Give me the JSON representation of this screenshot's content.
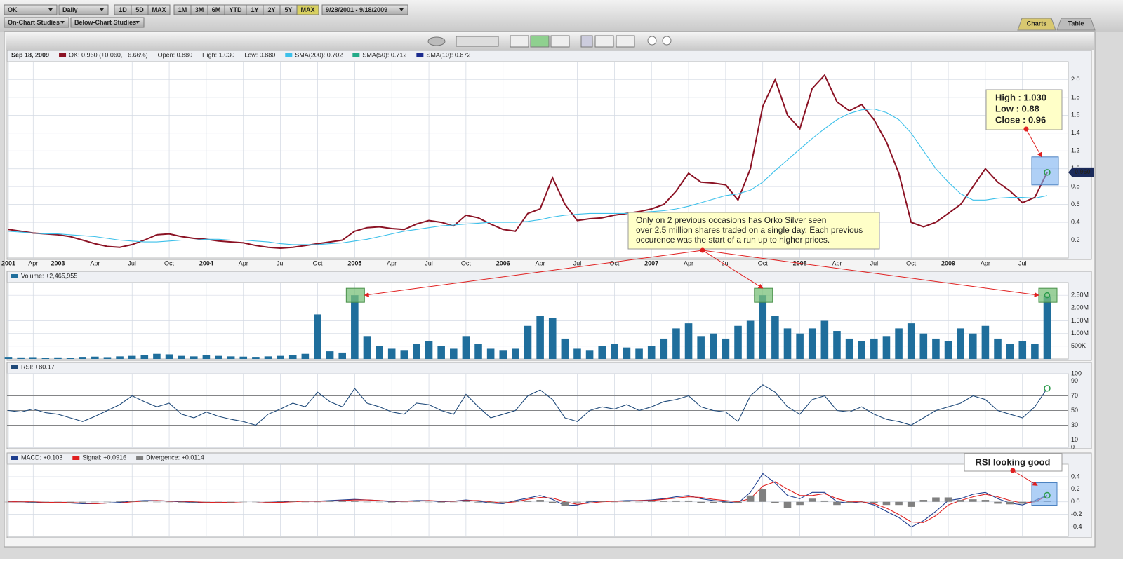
{
  "toolbar": {
    "symbol": "OK",
    "interval": "Daily",
    "ranges": [
      "1D",
      "5D",
      "MAX",
      "1M",
      "3M",
      "6M",
      "YTD",
      "1Y",
      "2Y",
      "5Y",
      "MAX"
    ],
    "selected_range": 10,
    "date_range": "9/28/2001 - 9/18/2009",
    "studies": [
      "On-Chart Studies",
      "Below-Chart Studies"
    ],
    "tabs": [
      "Charts",
      "Table"
    ]
  },
  "chart_data": [
    {
      "type": "line",
      "date_label": "Sep 18, 2009",
      "last_value_label": "0.960",
      "categories": [
        "2001",
        null,
        "Apr",
        null,
        "2003",
        null,
        null,
        "Apr",
        null,
        null,
        "Jul",
        null,
        null,
        "Oct",
        null,
        null,
        "2004",
        null,
        null,
        "Apr",
        null,
        null,
        "Jul",
        null,
        null,
        "Oct",
        null,
        null,
        "2005",
        null,
        null,
        "Apr",
        null,
        null,
        "Jul",
        null,
        null,
        "Oct",
        null,
        null,
        "2006",
        null,
        null,
        "Apr",
        null,
        null,
        "Jul",
        null,
        null,
        "Oct",
        null,
        null,
        "2007",
        null,
        null,
        "Apr",
        null,
        null,
        "Jul",
        null,
        null,
        "Oct",
        null,
        null,
        "2008",
        null,
        null,
        "Apr",
        null,
        null,
        "Jul",
        null,
        null,
        "Oct",
        null,
        null,
        "2009",
        null,
        null,
        "Apr",
        null,
        null,
        "Jul",
        null,
        null
      ],
      "series": [
        {
          "name": "OK: 0.960 (+0.060, +6.66%)",
          "color": "#8b1224",
          "values": [
            0.32,
            0.3,
            0.28,
            0.27,
            0.26,
            0.24,
            0.2,
            0.16,
            0.13,
            0.12,
            0.15,
            0.2,
            0.26,
            0.27,
            0.24,
            0.22,
            0.21,
            0.19,
            0.18,
            0.17,
            0.14,
            0.12,
            0.11,
            0.12,
            0.14,
            0.16,
            0.18,
            0.2,
            0.3,
            0.34,
            0.35,
            0.33,
            0.32,
            0.38,
            0.42,
            0.4,
            0.36,
            0.48,
            0.45,
            0.38,
            0.32,
            0.3,
            0.5,
            0.55,
            0.9,
            0.6,
            0.42,
            0.44,
            0.45,
            0.48,
            0.5,
            0.52,
            0.55,
            0.6,
            0.75,
            0.95,
            0.85,
            0.84,
            0.82,
            0.65,
            1.0,
            1.7,
            2.0,
            1.6,
            1.45,
            1.9,
            2.05,
            1.75,
            1.65,
            1.72,
            1.55,
            1.3,
            0.95,
            0.4,
            0.35,
            0.4,
            0.5,
            0.6,
            0.8,
            1.0,
            0.85,
            0.75,
            0.62,
            0.68,
            0.96
          ]
        },
        {
          "name": "SMA(200): 0.702",
          "color": "#3cc0ea",
          "values": [
            0.3,
            0.29,
            0.28,
            0.27,
            0.27,
            0.26,
            0.25,
            0.24,
            0.22,
            0.2,
            0.19,
            0.18,
            0.18,
            0.19,
            0.2,
            0.2,
            0.21,
            0.21,
            0.2,
            0.2,
            0.19,
            0.18,
            0.16,
            0.15,
            0.15,
            0.15,
            0.16,
            0.17,
            0.19,
            0.21,
            0.24,
            0.27,
            0.3,
            0.32,
            0.34,
            0.36,
            0.37,
            0.38,
            0.39,
            0.4,
            0.4,
            0.4,
            0.41,
            0.43,
            0.46,
            0.48,
            0.49,
            0.5,
            0.5,
            0.5,
            0.5,
            0.51,
            0.52,
            0.53,
            0.55,
            0.58,
            0.62,
            0.66,
            0.7,
            0.72,
            0.76,
            0.85,
            0.98,
            1.1,
            1.22,
            1.34,
            1.45,
            1.55,
            1.62,
            1.66,
            1.67,
            1.63,
            1.55,
            1.4,
            1.2,
            1.0,
            0.85,
            0.72,
            0.65,
            0.65,
            0.67,
            0.68,
            0.68,
            0.67,
            0.7
          ]
        }
      ],
      "info": [
        "Open: 0.880",
        "High: 1.030",
        "Low: 0.880"
      ],
      "studies": [
        {
          "name": "SMA(50): 0.712",
          "color": "#22aa88"
        },
        {
          "name": "SMA(10): 0.872",
          "color": "#1a2a8e"
        }
      ],
      "ylim": [
        0,
        2.2
      ],
      "yticks": [
        0.2,
        0.4,
        0.6,
        0.8,
        {
          "value": 1,
          "label": "1.0"
        },
        1.2,
        1.4,
        1.6,
        1.8,
        {
          "value": 2,
          "label": "2.0"
        }
      ],
      "grid": true,
      "callout": [
        "Only on 2 previous occasions has Orko Silver seen",
        "over 2.5 million shares traded on a single day. Each previous",
        "occurence was the start of a run up to higher prices."
      ],
      "ohlc_box": [
        "High :   1.030",
        "Low :    0.88",
        "Close : 0.96"
      ]
    },
    {
      "type": "bar",
      "title": "Volume: +2,465,955",
      "color": "#1f6e9c",
      "values": [
        80000,
        60000,
        70000,
        50000,
        60000,
        50000,
        80000,
        90000,
        70000,
        100000,
        120000,
        150000,
        200000,
        180000,
        120000,
        100000,
        150000,
        120000,
        100000,
        90000,
        80000,
        100000,
        120000,
        150000,
        200000,
        1750000,
        300000,
        250000,
        2500000,
        900000,
        500000,
        400000,
        350000,
        600000,
        700000,
        500000,
        400000,
        900000,
        600000,
        400000,
        350000,
        400000,
        1300000,
        1700000,
        1600000,
        800000,
        400000,
        350000,
        500000,
        600000,
        450000,
        400000,
        500000,
        800000,
        1200000,
        1400000,
        900000,
        1000000,
        800000,
        1300000,
        1500000,
        2500000,
        1700000,
        1200000,
        1000000,
        1200000,
        1500000,
        1100000,
        800000,
        700000,
        800000,
        900000,
        1200000,
        1400000,
        1000000,
        800000,
        700000,
        1200000,
        1000000,
        1300000,
        800000,
        600000,
        700000,
        600000,
        2465955
      ],
      "ylim": [
        0,
        3000000
      ],
      "yticks": [
        {
          "value": 500000,
          "label": "500K"
        },
        {
          "value": 1000000,
          "label": "1.00M"
        },
        {
          "value": 1500000,
          "label": "1.50M"
        },
        {
          "value": 2000000,
          "label": "2.00M"
        },
        {
          "value": 2500000,
          "label": "2.50M"
        }
      ],
      "grid": true
    },
    {
      "type": "line",
      "series": [
        {
          "name": "RSI: +80.17",
          "color": "#1f4a7a",
          "values": [
            50,
            48,
            52,
            47,
            45,
            40,
            35,
            42,
            50,
            58,
            70,
            62,
            55,
            60,
            45,
            40,
            48,
            42,
            38,
            35,
            30,
            45,
            52,
            60,
            55,
            75,
            62,
            55,
            80,
            60,
            55,
            48,
            45,
            60,
            58,
            50,
            45,
            72,
            55,
            40,
            45,
            50,
            70,
            78,
            65,
            40,
            35,
            50,
            55,
            52,
            58,
            50,
            55,
            62,
            65,
            70,
            55,
            50,
            48,
            35,
            70,
            85,
            75,
            55,
            45,
            65,
            70,
            50,
            48,
            55,
            45,
            38,
            35,
            30,
            40,
            50,
            55,
            60,
            70,
            65,
            50,
            45,
            40,
            55,
            80.17
          ]
        }
      ],
      "ylim": [
        0,
        100
      ],
      "yticks": [
        0,
        10,
        30,
        50,
        70,
        90,
        100
      ],
      "strong_lines": [
        30,
        50,
        70
      ],
      "grid": true
    },
    {
      "type": "line",
      "annotation": "RSI looking good",
      "series": [
        {
          "name": "MACD: +0.103",
          "color": "#1f3f8f",
          "values": [
            0,
            0,
            -0.01,
            -0.01,
            -0.01,
            -0.02,
            -0.03,
            -0.03,
            -0.02,
            -0.01,
            0.01,
            0.02,
            0.02,
            0.01,
            0,
            -0.01,
            -0.01,
            -0.01,
            -0.02,
            -0.02,
            -0.02,
            -0.01,
            0,
            0.01,
            0.01,
            0.01,
            0.02,
            0.03,
            0.04,
            0.03,
            0.02,
            0,
            0.01,
            0.02,
            0.02,
            0,
            0.01,
            0.03,
            0.01,
            -0.02,
            -0.03,
            0.02,
            0.06,
            0.1,
            0.04,
            -0.06,
            -0.05,
            0,
            0.01,
            0.01,
            0.02,
            0.02,
            0.03,
            0.05,
            0.08,
            0.1,
            0.05,
            0.02,
            0,
            -0.02,
            0.15,
            0.45,
            0.3,
            0.1,
            0.05,
            0.15,
            0.15,
            0,
            -0.02,
            0,
            -0.05,
            -0.15,
            -0.25,
            -0.4,
            -0.3,
            -0.15,
            0.02,
            0.05,
            0.12,
            0.15,
            0.05,
            -0.02,
            -0.05,
            0.02,
            0.103
          ]
        },
        {
          "name": "Signal: +0.0916",
          "color": "#e02020",
          "values": [
            0,
            0,
            0,
            -0.01,
            -0.01,
            -0.01,
            -0.02,
            -0.03,
            -0.02,
            -0.02,
            0,
            0.01,
            0.02,
            0.01,
            0.01,
            0,
            -0.01,
            -0.01,
            -0.01,
            -0.02,
            -0.02,
            -0.01,
            -0.01,
            0,
            0.01,
            0.01,
            0.01,
            0.02,
            0.03,
            0.03,
            0.02,
            0.01,
            0.01,
            0.01,
            0.02,
            0.01,
            0.01,
            0.02,
            0.02,
            0,
            -0.02,
            0,
            0.04,
            0.07,
            0.06,
            0,
            -0.04,
            -0.02,
            0,
            0.01,
            0.01,
            0.02,
            0.02,
            0.04,
            0.06,
            0.08,
            0.07,
            0.04,
            0.02,
            0,
            0.05,
            0.25,
            0.32,
            0.2,
            0.1,
            0.1,
            0.13,
            0.05,
            0,
            0,
            -0.03,
            -0.1,
            -0.2,
            -0.32,
            -0.33,
            -0.22,
            -0.05,
            0.02,
            0.08,
            0.12,
            0.08,
            0.02,
            -0.02,
            0,
            0.0916
          ]
        },
        {
          "name": "Divergence: +0.0114",
          "color": "#808080",
          "type": "bar",
          "values": [
            0,
            0,
            -0.01,
            0,
            0,
            -0.01,
            -0.01,
            0,
            0,
            0.01,
            0.01,
            0.01,
            0,
            0,
            -0.01,
            -0.01,
            0,
            0,
            -0.01,
            0,
            0,
            0,
            0.01,
            0.01,
            0,
            0,
            0.01,
            0.01,
            0.01,
            0,
            0,
            -0.01,
            0,
            0.01,
            0,
            -0.01,
            0,
            0.01,
            -0.01,
            -0.02,
            -0.01,
            0.02,
            0.02,
            0.03,
            -0.02,
            -0.06,
            -0.01,
            0.02,
            0.01,
            0,
            0.01,
            0,
            0.01,
            0.01,
            0.02,
            0.02,
            -0.02,
            -0.02,
            -0.02,
            -0.02,
            0.1,
            0.2,
            -0.02,
            -0.1,
            -0.05,
            0.05,
            0.02,
            -0.05,
            -0.02,
            0,
            -0.02,
            -0.05,
            -0.05,
            -0.08,
            0.03,
            0.07,
            0.07,
            0.03,
            0.04,
            0.03,
            -0.03,
            -0.04,
            -0.03,
            0.02,
            0.0114
          ]
        }
      ],
      "ylim": [
        -0.55,
        0.6
      ],
      "yticks": [
        -0.4,
        -0.2,
        {
          "value": 0,
          "label": "0.0"
        },
        0.2,
        0.4
      ],
      "grid": true
    }
  ]
}
